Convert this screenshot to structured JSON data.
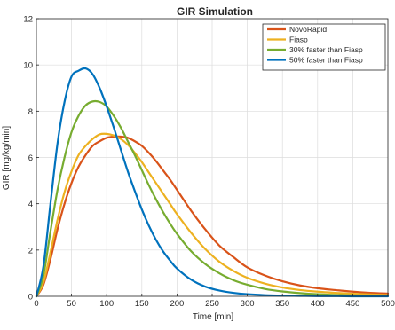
{
  "chart_data": {
    "type": "line",
    "title": "GIR Simulation",
    "xlabel": "Time [min]",
    "ylabel": "GIR [mg/kg/min]",
    "xlim": [
      0,
      500
    ],
    "ylim": [
      0,
      12
    ],
    "xticks": [
      0,
      50,
      100,
      150,
      200,
      250,
      300,
      350,
      400,
      450,
      500
    ],
    "yticks": [
      0,
      2,
      4,
      6,
      8,
      10,
      12
    ],
    "grid": true,
    "legend_position": "top-right",
    "x": [
      0,
      10,
      20,
      30,
      40,
      50,
      60,
      70,
      80,
      90,
      100,
      110,
      120,
      130,
      140,
      150,
      160,
      170,
      180,
      190,
      200,
      220,
      240,
      260,
      280,
      300,
      325,
      350,
      375,
      400,
      425,
      450,
      475,
      500
    ],
    "series": [
      {
        "name": "NovoRapid",
        "color": "#D95319",
        "values": [
          0,
          0.5,
          1.6,
          2.9,
          4.0,
          4.9,
          5.6,
          6.1,
          6.5,
          6.7,
          6.85,
          6.9,
          6.9,
          6.85,
          6.7,
          6.5,
          6.2,
          5.85,
          5.45,
          5.05,
          4.6,
          3.7,
          2.9,
          2.2,
          1.7,
          1.25,
          0.9,
          0.65,
          0.47,
          0.35,
          0.27,
          0.2,
          0.15,
          0.12
        ]
      },
      {
        "name": "Fiasp",
        "color": "#EDB120",
        "values": [
          0,
          0.6,
          1.9,
          3.3,
          4.5,
          5.4,
          6.1,
          6.5,
          6.8,
          7.0,
          7.02,
          6.95,
          6.8,
          6.55,
          6.2,
          5.8,
          5.35,
          4.9,
          4.45,
          4.0,
          3.55,
          2.75,
          2.05,
          1.5,
          1.1,
          0.8,
          0.55,
          0.38,
          0.27,
          0.2,
          0.15,
          0.11,
          0.08,
          0.06
        ]
      },
      {
        "name": "30% faster than Fiasp",
        "color": "#77AC30",
        "values": [
          0,
          0.9,
          2.8,
          4.6,
          6.0,
          7.1,
          7.8,
          8.25,
          8.42,
          8.4,
          8.2,
          7.8,
          7.3,
          6.7,
          6.1,
          5.45,
          4.8,
          4.2,
          3.65,
          3.15,
          2.7,
          1.95,
          1.4,
          1.0,
          0.7,
          0.5,
          0.32,
          0.21,
          0.14,
          0.09,
          0.06,
          0.04,
          0.03,
          0.02
        ]
      },
      {
        "name": "50% faster than Fiasp",
        "color": "#0072BD",
        "values": [
          0,
          1.3,
          4.0,
          6.6,
          8.4,
          9.5,
          9.75,
          9.85,
          9.6,
          9.0,
          8.2,
          7.3,
          6.35,
          5.4,
          4.55,
          3.75,
          3.05,
          2.45,
          1.95,
          1.55,
          1.2,
          0.72,
          0.42,
          0.25,
          0.15,
          0.09,
          0.05,
          0.03,
          0.02,
          0.01,
          0.01,
          0.0,
          0.0,
          0.0
        ]
      }
    ]
  }
}
